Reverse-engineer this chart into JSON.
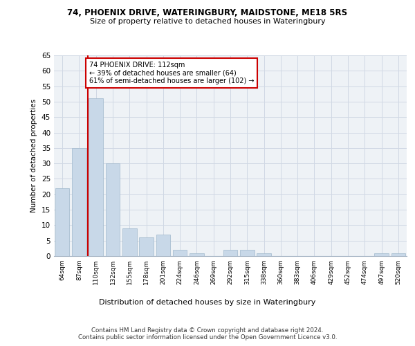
{
  "title1": "74, PHOENIX DRIVE, WATERINGBURY, MAIDSTONE, ME18 5RS",
  "title2": "Size of property relative to detached houses in Wateringbury",
  "xlabel": "Distribution of detached houses by size in Wateringbury",
  "ylabel": "Number of detached properties",
  "categories": [
    "64sqm",
    "87sqm",
    "110sqm",
    "132sqm",
    "155sqm",
    "178sqm",
    "201sqm",
    "224sqm",
    "246sqm",
    "269sqm",
    "292sqm",
    "315sqm",
    "338sqm",
    "360sqm",
    "383sqm",
    "406sqm",
    "429sqm",
    "452sqm",
    "474sqm",
    "497sqm",
    "520sqm"
  ],
  "values": [
    22,
    35,
    51,
    30,
    9,
    6,
    7,
    2,
    1,
    0,
    2,
    2,
    1,
    0,
    0,
    0,
    0,
    0,
    0,
    1,
    1
  ],
  "bar_color": "#c8d8e8",
  "bar_edge_color": "#a0b8cc",
  "highlight_line_color": "#cc0000",
  "annotation_text": "74 PHOENIX DRIVE: 112sqm\n← 39% of detached houses are smaller (64)\n61% of semi-detached houses are larger (102) →",
  "annotation_box_color": "#ffffff",
  "annotation_box_edge": "#cc0000",
  "ylim": [
    0,
    65
  ],
  "yticks": [
    0,
    5,
    10,
    15,
    20,
    25,
    30,
    35,
    40,
    45,
    50,
    55,
    60,
    65
  ],
  "footnote1": "Contains HM Land Registry data © Crown copyright and database right 2024.",
  "footnote2": "Contains public sector information licensed under the Open Government Licence v3.0.",
  "bg_color": "#eef2f6",
  "grid_color": "#d0d8e4"
}
